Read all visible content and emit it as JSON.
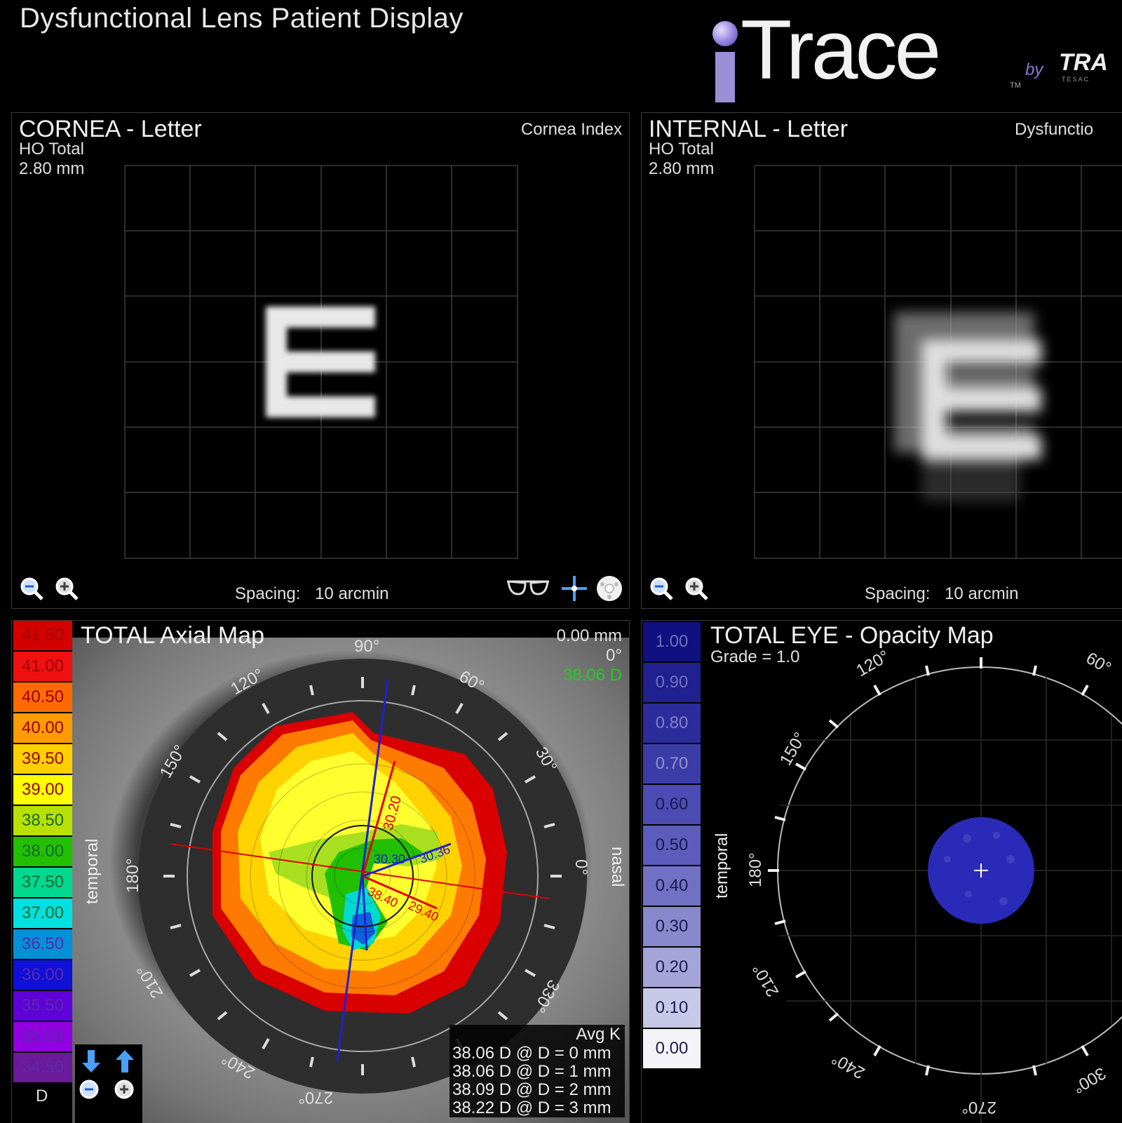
{
  "header": {
    "title": "Dysfunctional Lens Patient Display"
  },
  "logo": {
    "brand_rest": "Trace",
    "tm": "TM",
    "by": "by",
    "company": "TRA",
    "company_sub": "TESAC"
  },
  "cornea_panel": {
    "title": "CORNEA - Letter",
    "sub1": "HO Total",
    "sub2": "2.80 mm",
    "index_label": "Cornea Index",
    "letter": "E",
    "spacing_label": "Spacing:",
    "spacing_value": "10 arcmin"
  },
  "internal_panel": {
    "title": "INTERNAL - Letter",
    "sub1": "HO Total",
    "sub2": "2.80 mm",
    "index_label": "Dysfunctio",
    "letter": "E",
    "spacing_label": "Spacing:",
    "spacing_value": "10 arcmin"
  },
  "axial_panel": {
    "title": "TOTAL  Axial Map",
    "info_mm": "0.00 mm",
    "info_deg": "0°",
    "info_d": "38.06 D",
    "temporal": "temporal",
    "nasal": "nasal",
    "unit": "D",
    "scale": [
      {
        "v": "41.50",
        "c": "#d40000"
      },
      {
        "v": "41.00",
        "c": "#f01010"
      },
      {
        "v": "40.50",
        "c": "#ff6a00"
      },
      {
        "v": "40.00",
        "c": "#ff9a00"
      },
      {
        "v": "39.50",
        "c": "#ffd000"
      },
      {
        "v": "39.00",
        "c": "#ffff00"
      },
      {
        "v": "38.50",
        "c": "#b8e000"
      },
      {
        "v": "38.00",
        "c": "#22c000"
      },
      {
        "v": "37.50",
        "c": "#00d890"
      },
      {
        "v": "37.00",
        "c": "#00e0e0"
      },
      {
        "v": "36.50",
        "c": "#0090d8"
      },
      {
        "v": "36.00",
        "c": "#1010d8"
      },
      {
        "v": "35.50",
        "c": "#6000d8"
      },
      {
        "v": "35.00",
        "c": "#9000e0"
      },
      {
        "v": "34.50",
        "c": "#6a1a9a"
      }
    ],
    "angles": {
      "a90": "90°",
      "a60": "60°",
      "a30": "30°",
      "a0": "0°",
      "a330": "330°",
      "a300": "300°",
      "a270": "270°",
      "a240": "240°",
      "a210": "210°",
      "a180": "180°",
      "a150": "150°",
      "a120": "120°"
    },
    "overlay": {
      "v1": "30.20",
      "v2": "30.30",
      "v3": "29.40",
      "v4": "38.40",
      "v5": "30.36"
    },
    "avgk": {
      "header": "Avg K",
      "rows": [
        "38.06 D @ D = 0 mm",
        "38.06 D @ D = 1 mm",
        "38.09 D @ D = 2 mm",
        "38.22 D @ D = 3 mm"
      ]
    }
  },
  "opacity_panel": {
    "title": "TOTAL EYE - Opacity Map",
    "grade": "Grade = 1.0",
    "temporal": "temporal",
    "scale": [
      {
        "v": "1.00",
        "c": "#101080",
        "t": "#7070c0"
      },
      {
        "v": "0.90",
        "c": "#202090",
        "t": "#7070c0"
      },
      {
        "v": "0.80",
        "c": "#2c2c9c",
        "t": "#8080c8"
      },
      {
        "v": "0.70",
        "c": "#3c3ca8",
        "t": "#9090d0"
      },
      {
        "v": "0.60",
        "c": "#4c4cb4",
        "t": "#1a1a50"
      },
      {
        "v": "0.50",
        "c": "#5c5cbc",
        "t": "#1a1a50"
      },
      {
        "v": "0.40",
        "c": "#7070c4",
        "t": "#1a1a50"
      },
      {
        "v": "0.30",
        "c": "#8888cc",
        "t": "#1a1a50"
      },
      {
        "v": "0.20",
        "c": "#a4a4d8",
        "t": "#1a1a50"
      },
      {
        "v": "0.10",
        "c": "#c8c8e8",
        "t": "#1a1a50"
      },
      {
        "v": "0.00",
        "c": "#f4f4f8",
        "t": "#1a1a50"
      }
    ],
    "angles": {
      "a120": "120°",
      "a60": "60°",
      "a150": "150°",
      "a180": "180°",
      "a210": "210°",
      "a240": "240°",
      "a270": "270°",
      "a300": "300°"
    }
  }
}
